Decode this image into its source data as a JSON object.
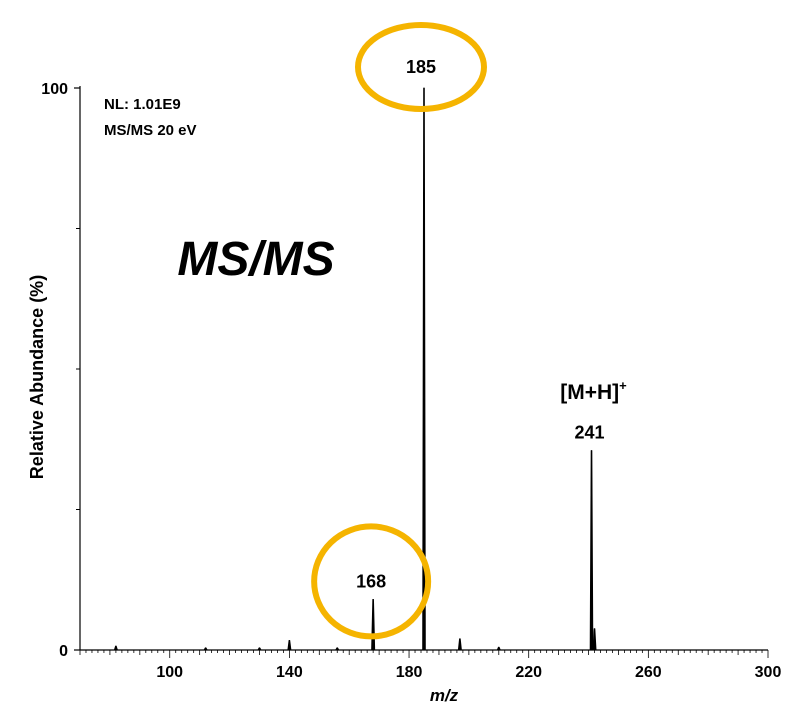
{
  "chart_data": {
    "type": "bar",
    "subtype": "mass-spectrum-stick",
    "xlabel": "m/z",
    "ylabel": "Relative Abundance (%)",
    "xlim": [
      70,
      300
    ],
    "ylim": [
      0,
      100
    ],
    "x_ticks": [
      100,
      140,
      180,
      220,
      260,
      300
    ],
    "y_ticks": [
      0,
      100
    ],
    "y_tick_labels": [
      "0",
      "100"
    ],
    "info_lines": [
      "NL: 1.01E9",
      "MS/MS 20 eV"
    ],
    "mode_label": "MS/MS",
    "grid": false,
    "peaks": [
      {
        "x": 82,
        "y": 0.7
      },
      {
        "x": 112,
        "y": 0.4
      },
      {
        "x": 130,
        "y": 0.4
      },
      {
        "x": 140,
        "y": 1.7
      },
      {
        "x": 156,
        "y": 0.4
      },
      {
        "x": 168,
        "y": 9.0
      },
      {
        "x": 185,
        "y": 100
      },
      {
        "x": 197,
        "y": 2.0
      },
      {
        "x": 210,
        "y": 0.5
      },
      {
        "x": 241,
        "y": 35.5
      },
      {
        "x": 242,
        "y": 3.8
      }
    ],
    "peak_labels": [
      {
        "x": 185,
        "text": "185",
        "highlighted": true
      },
      {
        "x": 168,
        "text": "168",
        "highlighted": true
      },
      {
        "x": 241,
        "text": "241",
        "highlighted": false
      }
    ],
    "ion_label": {
      "x": 241,
      "base": "[M+H]",
      "sup": "+"
    }
  },
  "colors": {
    "highlight_ring": "#F5B400",
    "mode_label": "#1E5A78",
    "axis": "#000000",
    "trace": "#000000"
  }
}
